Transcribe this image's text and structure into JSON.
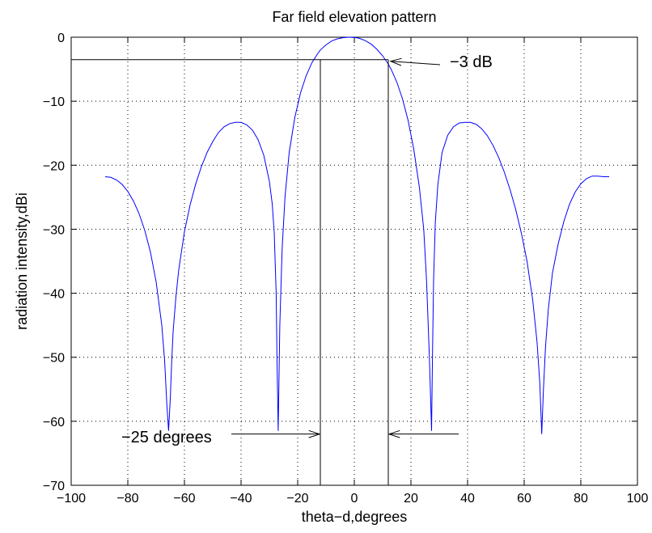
{
  "chart_data": {
    "type": "line",
    "title": "Far field elevation pattern",
    "xlabel": "theta−d,degrees",
    "ylabel": "radiation intensity,dBi",
    "xlim": [
      -100,
      100
    ],
    "ylim": [
      -70,
      0
    ],
    "xticks": [
      -100,
      -80,
      -60,
      -40,
      -20,
      0,
      20,
      40,
      60,
      80,
      100
    ],
    "xtick_labels": [
      "−100",
      "−80",
      "−60",
      "−40",
      "−20",
      "0",
      "20",
      "40",
      "60",
      "80",
      "100"
    ],
    "yticks": [
      0,
      -10,
      -20,
      -30,
      -40,
      -50,
      -60,
      -70
    ],
    "ytick_labels": [
      "0",
      "−10",
      "−20",
      "−30",
      "−40",
      "−50",
      "−60",
      "−70"
    ],
    "grid": true,
    "series": [
      {
        "color": "#0000ff",
        "x": [
          -88,
          -86,
          -84,
          -82,
          -80,
          -78,
          -76,
          -74,
          -72,
          -70,
          -68,
          -67,
          -66.2,
          -65.6,
          -65,
          -64.5,
          -64,
          -63,
          -62,
          -60,
          -58,
          -56,
          -54,
          -52,
          -50,
          -48,
          -46,
          -44,
          -42,
          -40,
          -38,
          -36,
          -34,
          -32,
          -30,
          -29,
          -28.3,
          -27.6,
          -27.3,
          -26.9,
          -26.3,
          -25.5,
          -24.5,
          -23,
          -21,
          -19,
          -17,
          -15,
          -13,
          -12,
          -10,
          -8,
          -6,
          -4,
          -2,
          0,
          1,
          2,
          4,
          6,
          8,
          10,
          12,
          13,
          15,
          17,
          19,
          21,
          23,
          24.5,
          25.5,
          26.5,
          27.3,
          27.6,
          28,
          28.6,
          29.5,
          31,
          33,
          35,
          37,
          39,
          41,
          43,
          45,
          47,
          49,
          51,
          53,
          55,
          57,
          59,
          61,
          63,
          64.5,
          65.5,
          66.2,
          66.8,
          67.5,
          68.5,
          70,
          72,
          74,
          76,
          78,
          80,
          82,
          84,
          86,
          88,
          90
        ],
        "y": [
          -21.8,
          -21.9,
          -22.3,
          -23.0,
          -24.1,
          -25.6,
          -27.6,
          -30.2,
          -33.6,
          -38.2,
          -45.0,
          -50.5,
          -57.5,
          -61.5,
          -56.5,
          -50.5,
          -46.0,
          -40.5,
          -36.3,
          -30.4,
          -26.2,
          -22.9,
          -20.2,
          -18.0,
          -16.3,
          -14.9,
          -14.0,
          -13.5,
          -13.3,
          -13.3,
          -13.7,
          -14.5,
          -16.0,
          -18.4,
          -22.5,
          -26.0,
          -30.5,
          -40.0,
          -50.0,
          -61.5,
          -45.0,
          -33.0,
          -25.0,
          -18.0,
          -12.5,
          -8.7,
          -6.0,
          -4.0,
          -2.6,
          -2.0,
          -1.2,
          -0.6,
          -0.25,
          -0.07,
          0.0,
          -0.05,
          -0.1,
          -0.2,
          -0.55,
          -1.1,
          -1.9,
          -2.9,
          -4.2,
          -5.0,
          -7.0,
          -9.6,
          -13.0,
          -17.5,
          -23.5,
          -30.0,
          -38.0,
          -50.0,
          -61.5,
          -50.0,
          -38.0,
          -29.0,
          -23.0,
          -18.0,
          -15.3,
          -14.0,
          -13.4,
          -13.3,
          -13.3,
          -13.6,
          -14.3,
          -15.4,
          -16.9,
          -18.8,
          -21.1,
          -23.8,
          -26.9,
          -30.6,
          -35.0,
          -41.0,
          -47.5,
          -54.0,
          -62.0,
          -55.0,
          -48.5,
          -42.5,
          -36.8,
          -32.3,
          -28.8,
          -26.1,
          -24.2,
          -22.9,
          -22.1,
          -21.7,
          -21.7,
          -21.8,
          -21.8
        ]
      }
    ],
    "annotations": {
      "minus3db_label": "−3 dB",
      "beamwidth_label": "−25 degrees"
    }
  }
}
